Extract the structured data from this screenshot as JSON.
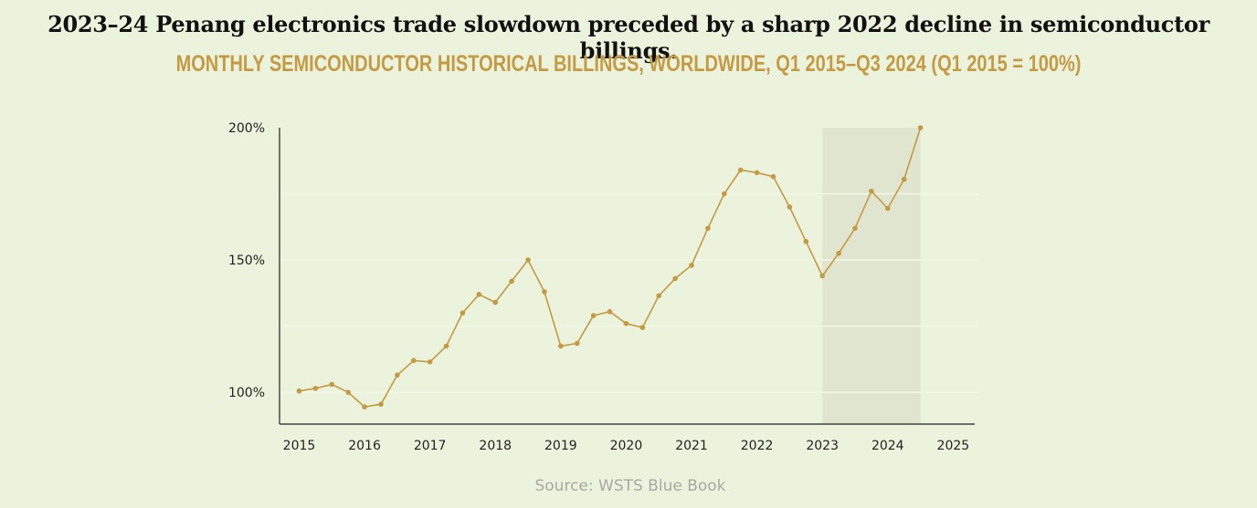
{
  "title": "2023–24 Penang electronics trade slowdown preceded by a sharp 2022 decline in semiconductor billings.",
  "subtitle": "MONTHLY SEMICONDUCTOR HISTORICAL BILLINGS, WORLDWIDE, Q1 2015–Q3 2024 (Q1 2015 = 100%)",
  "source": "Source: WSTS Blue Book",
  "colors": {
    "background": "#ebf3dc",
    "line": "#c49a44",
    "subtitle": "#c49a44",
    "highlight": "#dfe5cf",
    "axis": "#222222",
    "grid": "#f3f7ea"
  },
  "chart_data": {
    "type": "line",
    "title": "MONTHLY SEMICONDUCTOR HISTORICAL BILLINGS, WORLDWIDE, Q1 2015–Q3 2024 (Q1 2015 = 100%)",
    "xlabel": "",
    "ylabel": "",
    "x_ticks": [
      "2015",
      "2016",
      "2017",
      "2018",
      "2019",
      "2020",
      "2021",
      "2022",
      "2023",
      "2024",
      "2025"
    ],
    "y_ticks": [
      "100%",
      "150%",
      "200%"
    ],
    "xlim": [
      2014.7,
      2025.4
    ],
    "ylim": [
      88,
      200
    ],
    "grid": true,
    "highlight_range": [
      2023.0,
      2024.5
    ],
    "series": [
      {
        "x": [
          2015.0,
          2015.25,
          2015.5,
          2015.75,
          2016.0,
          2016.25,
          2016.5,
          2016.75,
          2017.0,
          2017.25,
          2017.5,
          2017.75,
          2018.0,
          2018.25,
          2018.5,
          2018.75,
          2019.0,
          2019.25,
          2019.5,
          2019.75,
          2020.0,
          2020.25,
          2020.5,
          2020.75,
          2021.0,
          2021.25,
          2021.5,
          2021.75,
          2022.0,
          2022.25,
          2022.5,
          2022.75,
          2023.0,
          2023.25,
          2023.5,
          2023.75,
          2024.0,
          2024.25,
          2024.5
        ],
        "values": [
          100.5,
          101.5,
          103,
          100,
          94.5,
          95.5,
          106.5,
          112,
          111.5,
          117.5,
          130,
          137,
          134,
          142,
          150,
          138,
          117.5,
          118.5,
          129,
          130.5,
          126,
          124.5,
          136.5,
          143,
          148,
          162,
          175,
          184,
          183,
          181.5,
          170,
          157,
          144,
          152.5,
          162,
          176,
          169.5,
          180.5,
          200
        ]
      }
    ]
  }
}
